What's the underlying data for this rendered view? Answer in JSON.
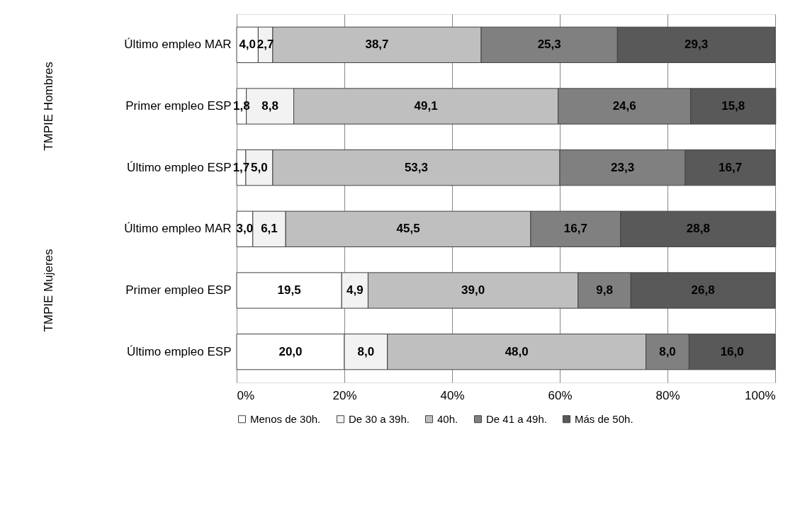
{
  "chart_data": {
    "type": "bar",
    "orientation": "horizontal",
    "stacked": true,
    "grid": "x",
    "legend": "bottom",
    "categories": [
      "Último empleo MAR",
      "Primer empleo ESP",
      "Último empleo ESP",
      "Último empleo MAR",
      "Primer empleo ESP",
      "Último empleo ESP"
    ],
    "annotations": [
      "TMPIE Hombres",
      "TMPIE Mujeres"
    ],
    "xlim": [
      0,
      100
    ],
    "xticks": [
      {
        "value": 0,
        "label": "0%"
      },
      {
        "value": 20,
        "label": "20%"
      },
      {
        "value": 40,
        "label": "40%"
      },
      {
        "value": 60,
        "label": "60%"
      },
      {
        "value": 80,
        "label": "80%"
      },
      {
        "value": 100,
        "label": "100%"
      }
    ],
    "series": [
      {
        "name": "Menos de 30h.",
        "color": "#ffffff",
        "values": [
          4.0,
          1.8,
          1.7,
          3.0,
          19.5,
          20.0
        ],
        "value_labels": [
          "4,0",
          "1,8",
          "1,7",
          "3,0",
          "19,5",
          "20,0"
        ]
      },
      {
        "name": "De 30 a 39h.",
        "color": "#f2f2f2",
        "values": [
          2.7,
          8.8,
          5.0,
          6.1,
          4.9,
          8.0
        ],
        "value_labels": [
          "2,7",
          "8,8",
          "5,0",
          "6,1",
          "4,9",
          "8,0"
        ]
      },
      {
        "name": "40h.",
        "color": "#bfbfbf",
        "values": [
          38.7,
          49.1,
          53.3,
          45.5,
          39.0,
          48.0
        ],
        "value_labels": [
          "38,7",
          "49,1",
          "53,3",
          "45,5",
          "39,0",
          "48,0"
        ]
      },
      {
        "name": "De 41 a 49h.",
        "color": "#808080",
        "values": [
          25.3,
          24.6,
          23.3,
          16.7,
          9.8,
          8.0
        ],
        "value_labels": [
          "25,3",
          "24,6",
          "23,3",
          "16,7",
          "9,8",
          "8,0"
        ]
      },
      {
        "name": "Más de 50h.",
        "color": "#595959",
        "values": [
          29.3,
          15.8,
          16.7,
          28.8,
          26.8,
          16.0
        ],
        "value_labels": [
          "29,3",
          "15,8",
          "16,7",
          "28,8",
          "26,8",
          "16,0"
        ]
      }
    ]
  }
}
